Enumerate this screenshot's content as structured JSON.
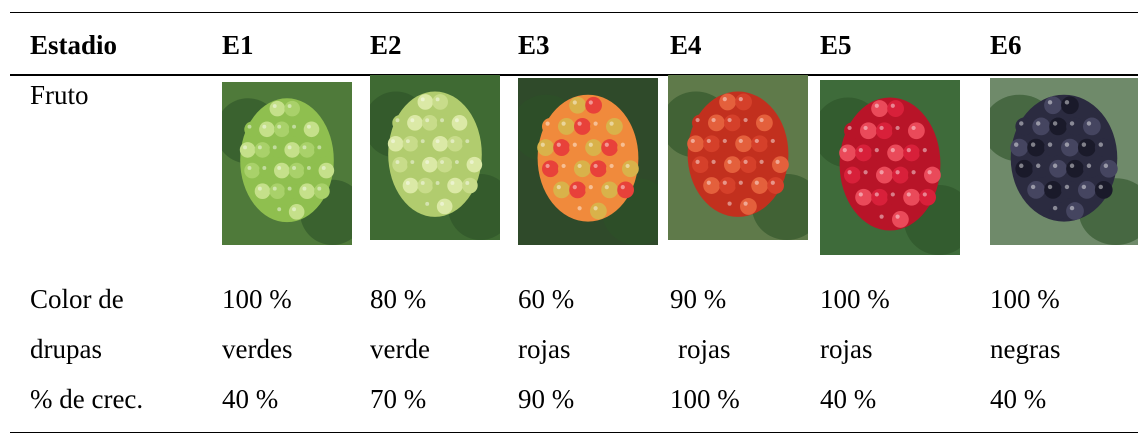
{
  "table": {
    "header": [
      "Estadio",
      "E1",
      "E2",
      "E3",
      "E4",
      "E5",
      "E6"
    ],
    "fruit_label": "Fruto",
    "color_row": {
      "label": [
        "Color de",
        "drupas"
      ],
      "cells": [
        [
          "100 %",
          "verdes"
        ],
        [
          "80 %",
          "verde"
        ],
        [
          "60 %",
          "rojas"
        ],
        [
          "90 %",
          "rojas"
        ],
        [
          "100 %",
          "rojas"
        ],
        [
          "100 %",
          "negras"
        ]
      ]
    },
    "growth_row": [
      "% de crec.",
      "40 %",
      "70 %",
      "90 %",
      "100 %",
      "40 %",
      "40 %"
    ]
  }
}
